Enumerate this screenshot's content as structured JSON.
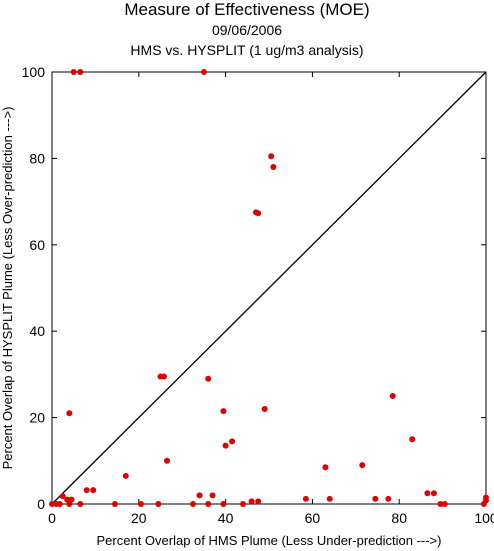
{
  "chart_data": {
    "type": "scatter",
    "title": "Measure of Effectiveness (MOE)",
    "subtitle_date": "09/06/2006",
    "subtitle_analysis": "HMS vs. HYSPLIT  (1 ug/m3 analysis)",
    "xlabel": "Percent Overlap of HMS Plume (Less Under-prediction --->)",
    "ylabel": "Percent Overlap of HYSPLIT Plume (Less Over-prediction --->)",
    "xlim": [
      0,
      100
    ],
    "ylim": [
      0,
      100
    ],
    "x_ticks": [
      "0",
      "20",
      "40",
      "60",
      "80",
      "100"
    ],
    "y_ticks": [
      "0",
      "20",
      "40",
      "60",
      "80",
      "100"
    ],
    "reference_line": "y = x",
    "marker_color": "#e00000",
    "points": [
      {
        "x": 5,
        "y": 100
      },
      {
        "x": 6.5,
        "y": 100
      },
      {
        "x": 35,
        "y": 100
      },
      {
        "x": 50.5,
        "y": 80.5
      },
      {
        "x": 51,
        "y": 78
      },
      {
        "x": 47,
        "y": 67.5
      },
      {
        "x": 47.5,
        "y": 67.3
      },
      {
        "x": 25,
        "y": 29.5
      },
      {
        "x": 25.8,
        "y": 29.5
      },
      {
        "x": 36,
        "y": 29
      },
      {
        "x": 78.5,
        "y": 25
      },
      {
        "x": 49,
        "y": 22
      },
      {
        "x": 39.5,
        "y": 21.5
      },
      {
        "x": 4,
        "y": 21
      },
      {
        "x": 83,
        "y": 15
      },
      {
        "x": 41.5,
        "y": 14.5
      },
      {
        "x": 40,
        "y": 13.5
      },
      {
        "x": 26.5,
        "y": 10
      },
      {
        "x": 71.5,
        "y": 9
      },
      {
        "x": 63,
        "y": 8.5
      },
      {
        "x": 17,
        "y": 6.5
      },
      {
        "x": 8,
        "y": 3.2
      },
      {
        "x": 9.5,
        "y": 3.2
      },
      {
        "x": 86.5,
        "y": 2.5
      },
      {
        "x": 88,
        "y": 2.5
      },
      {
        "x": 34,
        "y": 2
      },
      {
        "x": 37,
        "y": 2
      },
      {
        "x": 2.5,
        "y": 1.8
      },
      {
        "x": 3.5,
        "y": 1
      },
      {
        "x": 4.5,
        "y": 1
      },
      {
        "x": 58.5,
        "y": 1.2
      },
      {
        "x": 64,
        "y": 1.2
      },
      {
        "x": 74.5,
        "y": 1.2
      },
      {
        "x": 77.5,
        "y": 1.2
      },
      {
        "x": 100,
        "y": 1.5
      },
      {
        "x": 100,
        "y": 0.8
      },
      {
        "x": 46,
        "y": 0.6
      },
      {
        "x": 47.5,
        "y": 0.6
      },
      {
        "x": 0,
        "y": 0
      },
      {
        "x": 1,
        "y": 0
      },
      {
        "x": 1.8,
        "y": 0
      },
      {
        "x": 4,
        "y": 0
      },
      {
        "x": 6.5,
        "y": 0
      },
      {
        "x": 14.5,
        "y": 0
      },
      {
        "x": 20.5,
        "y": 0
      },
      {
        "x": 24.5,
        "y": 0
      },
      {
        "x": 32.5,
        "y": 0
      },
      {
        "x": 36,
        "y": 0
      },
      {
        "x": 39.5,
        "y": 0
      },
      {
        "x": 44,
        "y": 0
      },
      {
        "x": 89.5,
        "y": 0
      },
      {
        "x": 90.5,
        "y": 0
      },
      {
        "x": 99.5,
        "y": 0
      }
    ]
  }
}
